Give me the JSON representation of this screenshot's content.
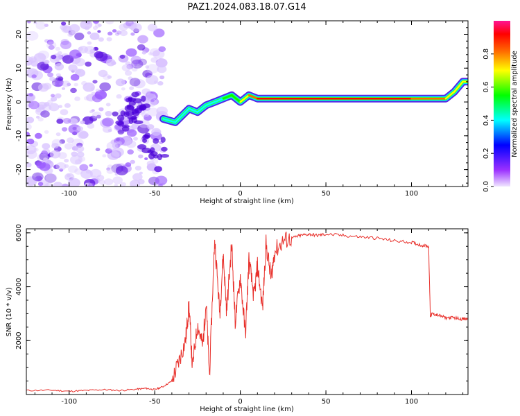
{
  "title": "PAZ1.2024.083.18.07.G14",
  "colorbar": {
    "label": "Normalized spectral amplitude",
    "ticks": [
      "0.0",
      "0.2",
      "0.4",
      "0.6",
      "0.8"
    ],
    "colors": [
      "#f0e6ff",
      "#9b30ff",
      "#0000ff",
      "#00ffff",
      "#00ff00",
      "#ffff00",
      "#ff6600",
      "#ff0000",
      "#ff1493"
    ]
  },
  "chart_data": [
    {
      "type": "heatmap",
      "title": "PAZ1.2024.083.18.07.G14",
      "xlabel": "Height of straight line (km)",
      "ylabel": "Frequency (Hz)",
      "xlim": [
        -125,
        133
      ],
      "ylim": [
        -25,
        24
      ],
      "xticks": [
        "-100",
        "-50",
        "0",
        "50",
        "100"
      ],
      "yticks": [
        "20",
        "10",
        "0",
        "-10",
        "-20"
      ],
      "grid": false,
      "ridge": {
        "description_points_x": [
          -45,
          -38,
          -30,
          -25,
          -20,
          -15,
          -10,
          -5,
          0,
          5,
          10,
          20,
          40,
          60,
          80,
          90,
          100,
          110,
          120,
          125,
          130,
          133
        ],
        "frequency_hz": [
          -5,
          -6,
          -2,
          -3,
          -1,
          0,
          1,
          2,
          0,
          2,
          1,
          1,
          1,
          1,
          1,
          1,
          1,
          1,
          1,
          3,
          6,
          6
        ],
        "amplitude": [
          0.4,
          0.4,
          0.45,
          0.4,
          0.45,
          0.5,
          0.55,
          0.55,
          0.7,
          0.75,
          0.9,
          0.95,
          0.97,
          0.97,
          0.95,
          0.92,
          0.92,
          0.9,
          0.85,
          0.75,
          0.7,
          0.7
        ]
      }
    },
    {
      "type": "line",
      "xlabel": "Height of straight line (km)",
      "ylabel": "SNR (10 * v/v)",
      "xlim": [
        -125,
        133
      ],
      "ylim": [
        0,
        6150
      ],
      "xticks": [
        "-100",
        "-50",
        "0",
        "50",
        "100"
      ],
      "yticks": [
        "6000",
        "4000",
        "2000"
      ],
      "grid": false,
      "color": "#e8302b",
      "x": [
        -125,
        -110,
        -100,
        -90,
        -80,
        -70,
        -60,
        -55,
        -50,
        -45,
        -40,
        -36,
        -32,
        -30,
        -28,
        -25,
        -22,
        -20,
        -18,
        -15,
        -12,
        -10,
        -8,
        -5,
        -3,
        0,
        3,
        5,
        8,
        10,
        13,
        15,
        18,
        20,
        25,
        30,
        35,
        40,
        45,
        50,
        60,
        70,
        80,
        90,
        100,
        105,
        110,
        111,
        112,
        115,
        120,
        125,
        130,
        133
      ],
      "y": [
        150,
        160,
        120,
        150,
        180,
        150,
        200,
        230,
        180,
        300,
        500,
        1200,
        2000,
        3300,
        1000,
        2600,
        1800,
        3400,
        700,
        5800,
        3000,
        5200,
        3100,
        5600,
        2700,
        4400,
        2200,
        5000,
        3600,
        4800,
        3200,
        5600,
        4300,
        5300,
        5700,
        5800,
        5900,
        5950,
        5900,
        5950,
        5900,
        5850,
        5800,
        5700,
        5650,
        5550,
        5500,
        2900,
        3000,
        2950,
        2850,
        2850,
        2800,
        2800
      ]
    }
  ]
}
